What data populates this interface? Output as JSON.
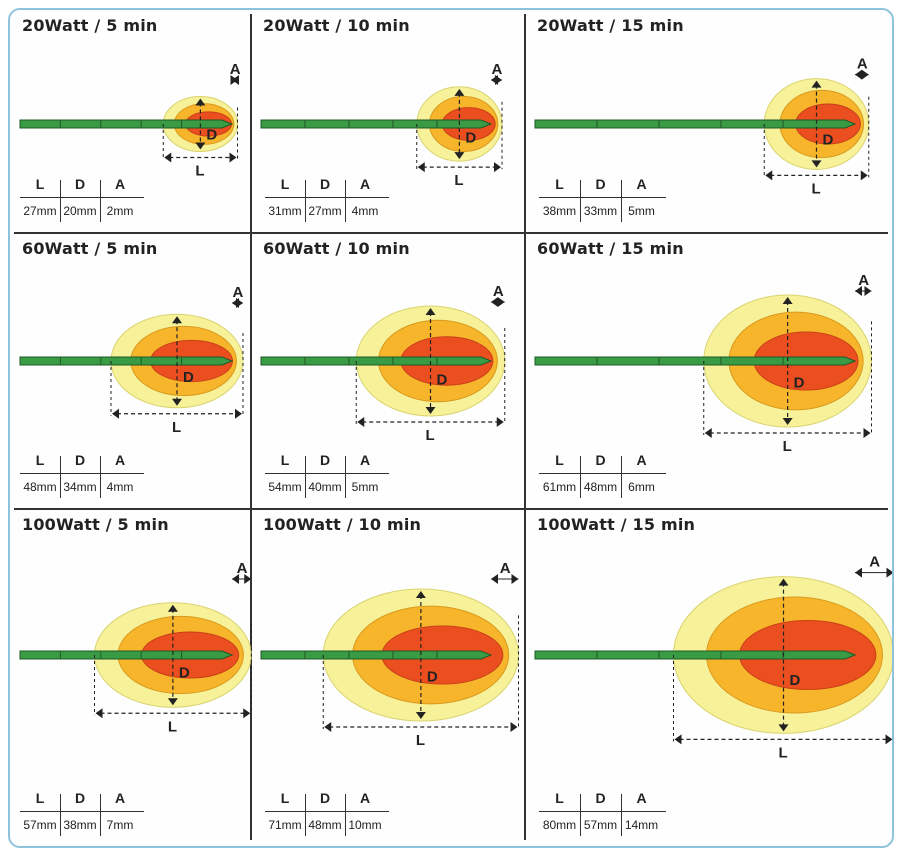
{
  "colors": {
    "outer": "#f7f29a",
    "middle": "#f6b52b",
    "inner": "#ec4f1f",
    "shaft": "#3a9b45",
    "border": "#8fc3dc"
  },
  "table_headers": [
    "L",
    "D",
    "A"
  ],
  "chart_data": {
    "type": "table",
    "panels": [
      {
        "title": "20Watt / 5 min",
        "L": "27mm",
        "D": "20mm",
        "A": "2mm",
        "L_mm": 27,
        "D_mm": 20,
        "A_mm": 2
      },
      {
        "title": "20Watt / 10 min",
        "L": "31mm",
        "D": "27mm",
        "A": "4mm",
        "L_mm": 31,
        "D_mm": 27,
        "A_mm": 4
      },
      {
        "title": "20Watt / 15 min",
        "L": "38mm",
        "D": "33mm",
        "A": "5mm",
        "L_mm": 38,
        "D_mm": 33,
        "A_mm": 5
      },
      {
        "title": "60Watt / 5 min",
        "L": "48mm",
        "D": "34mm",
        "A": "4mm",
        "L_mm": 48,
        "D_mm": 34,
        "A_mm": 4
      },
      {
        "title": "60Watt / 10 min",
        "L": "54mm",
        "D": "40mm",
        "A": "5mm",
        "L_mm": 54,
        "D_mm": 40,
        "A_mm": 5
      },
      {
        "title": "60Watt / 15 min",
        "L": "61mm",
        "D": "48mm",
        "A": "6mm",
        "L_mm": 61,
        "D_mm": 48,
        "A_mm": 6
      },
      {
        "title": "100Watt / 5 min",
        "L": "57mm",
        "D": "38mm",
        "A": "7mm",
        "L_mm": 57,
        "D_mm": 38,
        "A_mm": 7
      },
      {
        "title": "100Watt / 10 min",
        "L": "71mm",
        "D": "48mm",
        "A": "10mm",
        "L_mm": 71,
        "D_mm": 48,
        "A_mm": 10
      },
      {
        "title": "100Watt / 15 min",
        "L": "80mm",
        "D": "57mm",
        "A": "14mm",
        "L_mm": 80,
        "D_mm": 57,
        "A_mm": 14
      }
    ]
  }
}
